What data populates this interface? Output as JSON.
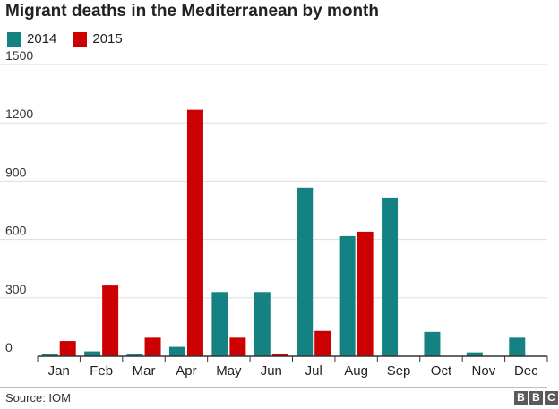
{
  "title": "Migrant deaths in the Mediterranean by month",
  "source": "Source: IOM",
  "logo_text": "BBC",
  "colors": {
    "series_2014": "#148282",
    "series_2015": "#cc0000",
    "grid": "#dddddd",
    "axis": "#333333"
  },
  "chart_data": {
    "type": "bar",
    "categories": [
      "Jan",
      "Feb",
      "Mar",
      "Apr",
      "May",
      "Jun",
      "Jul",
      "Aug",
      "Sep",
      "Oct",
      "Nov",
      "Dec"
    ],
    "series": [
      {
        "name": "2014",
        "values": [
          12,
          25,
          12,
          48,
          330,
          330,
          866,
          617,
          815,
          125,
          20,
          95
        ]
      },
      {
        "name": "2015",
        "values": [
          78,
          363,
          95,
          1267,
          95,
          12,
          130,
          640,
          null,
          null,
          null,
          null
        ]
      }
    ],
    "yticks": [
      "0",
      "300",
      "600",
      "900",
      "1200",
      "1500"
    ],
    "ylim": [
      0,
      1500
    ],
    "grid": true,
    "legend_position": "top-left",
    "title": "Migrant deaths in the Mediterranean by month",
    "xlabel": "",
    "ylabel": ""
  }
}
